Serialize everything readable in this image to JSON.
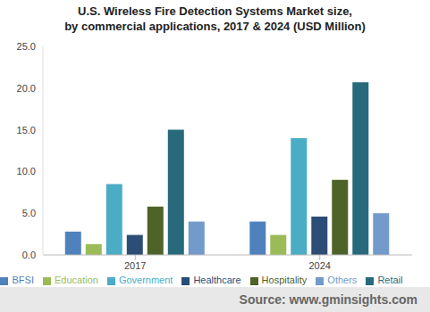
{
  "chart_data": {
    "type": "bar",
    "title": "U.S. Wireless Fire Detection Systems Market size,\nby commercial applications, 2017 & 2024 (USD Million)",
    "source": "Source: www.gminsights.com",
    "categories": [
      "2017",
      "2024"
    ],
    "series": [
      {
        "name": "BFSI",
        "color": "#4f81bd",
        "values": [
          2.8,
          4.0
        ]
      },
      {
        "name": "Education",
        "color": "#9bbb59",
        "values": [
          1.3,
          2.4
        ]
      },
      {
        "name": "Government",
        "color": "#4bacc6",
        "values": [
          8.5,
          14.0
        ]
      },
      {
        "name": "Healthcare",
        "color": "#2c4d75",
        "values": [
          2.4,
          4.6
        ]
      },
      {
        "name": "Hospitality",
        "color": "#4f6228",
        "values": [
          5.8,
          9.0
        ]
      },
      {
        "name": "Retail",
        "color": "#276a7c",
        "values": [
          15.0,
          20.7
        ]
      },
      {
        "name": "Others",
        "color": "#729aca",
        "values": [
          4.0,
          5.0
        ]
      }
    ],
    "ylim": [
      0,
      25
    ],
    "yticks": [
      {
        "value": 0,
        "label": "0.0"
      },
      {
        "value": 5,
        "label": "5.0"
      },
      {
        "value": 10,
        "label": "10.0"
      },
      {
        "value": 15,
        "label": "15.0"
      },
      {
        "value": 20,
        "label": "20.0"
      },
      {
        "value": 25,
        "label": "25.0"
      }
    ],
    "grid": false,
    "legend": "bottom"
  }
}
